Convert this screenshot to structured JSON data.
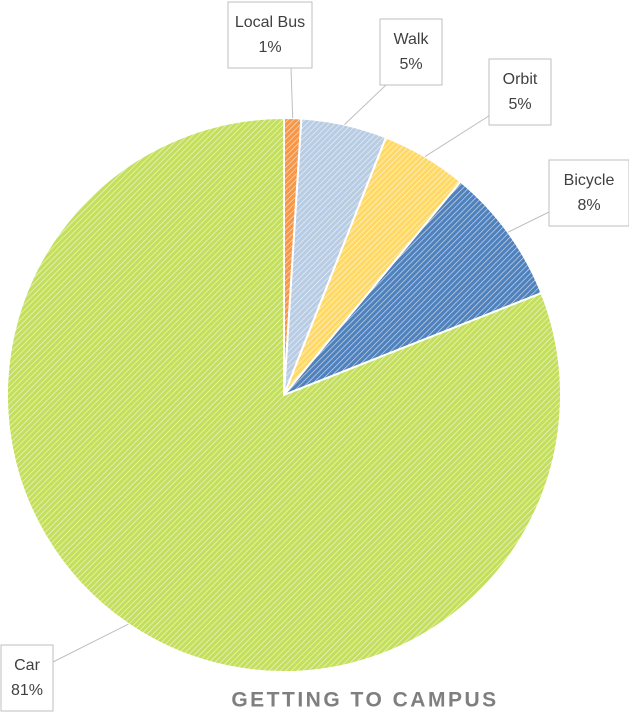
{
  "chart_data": {
    "type": "pie",
    "title": "GETTING TO CAMPUS",
    "categories": [
      "Local Bus",
      "Walk",
      "Orbit",
      "Bicycle",
      "Car"
    ],
    "values": [
      1,
      5,
      5,
      8,
      81
    ],
    "value_labels": [
      "1%",
      "5%",
      "5%",
      "8%",
      "81%"
    ],
    "colors": [
      "#f79646",
      "#b8cce4",
      "#ffd966",
      "#4f81bd",
      "#c4df5c"
    ]
  }
}
